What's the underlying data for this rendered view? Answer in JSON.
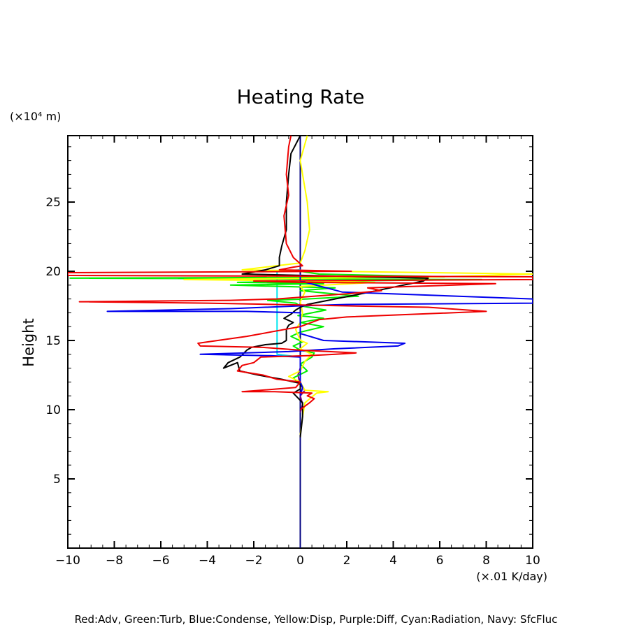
{
  "chart_data": {
    "type": "line",
    "title": "Heating Rate",
    "ylabel": "Height",
    "y_unit": "(×10⁴ m)",
    "x_unit": "(×.01 K/day)",
    "xlim": [
      -10,
      10
    ],
    "ylim": [
      0,
      29.8
    ],
    "x_ticks": [
      -10,
      -8,
      -6,
      -4,
      -2,
      0,
      2,
      4,
      6,
      8,
      10
    ],
    "x_tick_labels": [
      "−10",
      "−8",
      "−6",
      "−4",
      "−2",
      "0",
      "2",
      "4",
      "6",
      "8",
      "10"
    ],
    "y_ticks": [
      5,
      10,
      15,
      20,
      25
    ],
    "y_tick_labels": [
      "5",
      "10",
      "15",
      "20",
      "25"
    ],
    "legend_text": "Red:Adv, Green:Turb, Blue:Condense, Yellow:Disp, Purple:Diff, Cyan:Radiation, Navy: SfcFluc",
    "grid": false,
    "series": [
      {
        "key": "navy",
        "color": "#000080",
        "width": 2,
        "points": [
          [
            0,
            0
          ],
          [
            0,
            29.8
          ]
        ]
      },
      {
        "key": "cyan",
        "color": "#00e5ee",
        "width": 2,
        "points": [
          [
            0,
            13.8
          ],
          [
            -1.0,
            14.0
          ],
          [
            -1.0,
            20.0
          ],
          [
            0,
            20.1
          ]
        ]
      },
      {
        "key": "purple",
        "color": "#800080",
        "width": 2,
        "points": [
          [
            0,
            9.8
          ],
          [
            0.1,
            10.4
          ],
          [
            0,
            11.0
          ],
          [
            0.2,
            11.4
          ],
          [
            0,
            11.8
          ],
          [
            -0.1,
            12.5
          ],
          [
            0,
            13.0
          ]
        ]
      },
      {
        "key": "green",
        "color": "#00ee00",
        "width": 2,
        "points": [
          [
            0,
            11.8
          ],
          [
            -0.3,
            12.3
          ],
          [
            0.3,
            12.8
          ],
          [
            0,
            13.3
          ],
          [
            0.5,
            13.8
          ],
          [
            0.6,
            14.1
          ],
          [
            0,
            14.3
          ],
          [
            -0.3,
            14.6
          ],
          [
            0.1,
            14.9
          ],
          [
            -0.4,
            15.3
          ],
          [
            0,
            15.6
          ],
          [
            1.0,
            16.0
          ],
          [
            0,
            16.3
          ],
          [
            1.0,
            16.6
          ],
          [
            -0.1,
            16.8
          ],
          [
            1.1,
            17.2
          ],
          [
            0,
            17.5
          ],
          [
            -0.2,
            17.7
          ],
          [
            -1.4,
            17.9
          ],
          [
            0.3,
            18.0
          ],
          [
            2.5,
            18.2
          ],
          [
            0,
            18.6
          ],
          [
            1.5,
            18.8
          ],
          [
            -3.0,
            19.0
          ],
          [
            1.0,
            19.1
          ],
          [
            -2.7,
            19.2
          ],
          [
            1.4,
            19.3
          ],
          [
            7.8,
            19.4
          ],
          [
            -9.9,
            19.5
          ],
          [
            6.2,
            19.6
          ],
          [
            0.8,
            19.8
          ],
          [
            0,
            20.0
          ]
        ]
      },
      {
        "key": "yellow",
        "color": "#ffff00",
        "width": 2,
        "points": [
          [
            0,
            8.2
          ],
          [
            0.1,
            9.5
          ],
          [
            0.2,
            10.5
          ],
          [
            0.7,
            11.2
          ],
          [
            1.2,
            11.3
          ],
          [
            0.2,
            11.4
          ],
          [
            0,
            12.0
          ],
          [
            -0.5,
            12.4
          ],
          [
            0,
            12.8
          ],
          [
            0.2,
            13.5
          ],
          [
            0.5,
            14.0
          ],
          [
            0,
            14.4
          ],
          [
            0.3,
            14.8
          ],
          [
            0,
            15.0
          ],
          [
            -0.2,
            15.8
          ],
          [
            0,
            16.3
          ],
          [
            0.1,
            17.0
          ],
          [
            0,
            17.8
          ],
          [
            0.2,
            18.5
          ],
          [
            0,
            18.9
          ],
          [
            3.2,
            19.2
          ],
          [
            0.5,
            19.3
          ],
          [
            -5.0,
            19.4
          ],
          [
            6.0,
            19.6
          ],
          [
            10,
            19.8
          ],
          [
            1.4,
            20.0
          ],
          [
            -2.5,
            20.1
          ],
          [
            0,
            20.6
          ],
          [
            0.2,
            21.5
          ],
          [
            0.4,
            23.0
          ],
          [
            0.3,
            25.0
          ],
          [
            0.1,
            27.0
          ],
          [
            0,
            28.0
          ],
          [
            0.3,
            29.8
          ]
        ]
      },
      {
        "key": "black",
        "color": "#000000",
        "width": 2,
        "points": [
          [
            0,
            8.0
          ],
          [
            0.1,
            9.5
          ],
          [
            0.1,
            10.5
          ],
          [
            -0.3,
            11.2
          ],
          [
            0,
            11.5
          ],
          [
            0,
            11.9
          ],
          [
            -0.8,
            12.2
          ],
          [
            -1.8,
            12.5
          ],
          [
            -2.6,
            12.8
          ],
          [
            -2.7,
            13.4
          ],
          [
            -3.3,
            13.0
          ],
          [
            -3.1,
            13.4
          ],
          [
            -2.6,
            13.8
          ],
          [
            -2.3,
            14.3
          ],
          [
            -2.1,
            14.5
          ],
          [
            -1.5,
            14.7
          ],
          [
            -0.8,
            14.8
          ],
          [
            -0.6,
            15.0
          ],
          [
            -0.6,
            15.8
          ],
          [
            -0.5,
            16.1
          ],
          [
            -0.3,
            16.3
          ],
          [
            -0.7,
            16.6
          ],
          [
            -0.4,
            16.9
          ],
          [
            -0.2,
            17.2
          ],
          [
            0,
            17.4
          ],
          [
            0.3,
            17.6
          ],
          [
            3.0,
            18.5
          ],
          [
            5.3,
            19.3
          ],
          [
            5.5,
            19.5
          ],
          [
            -2.5,
            19.8
          ],
          [
            -1.5,
            20.1
          ],
          [
            -0.9,
            20.4
          ],
          [
            -0.9,
            21.0
          ],
          [
            -0.8,
            21.8
          ],
          [
            -0.6,
            23.0
          ],
          [
            -0.6,
            25.0
          ],
          [
            -0.5,
            27.0
          ],
          [
            -0.4,
            28.5
          ],
          [
            0,
            29.8
          ]
        ]
      },
      {
        "key": "blue",
        "color": "#0000ee",
        "width": 2,
        "points": [
          [
            0,
            11.0
          ],
          [
            0.1,
            11.6
          ],
          [
            0,
            12.0
          ],
          [
            0,
            13.8
          ],
          [
            -1.3,
            13.9
          ],
          [
            -4.3,
            14.0
          ],
          [
            -0.5,
            14.2
          ],
          [
            0.5,
            14.3
          ],
          [
            1.5,
            14.4
          ],
          [
            4.2,
            14.6
          ],
          [
            4.5,
            14.8
          ],
          [
            1.0,
            15.0
          ],
          [
            0,
            15.5
          ],
          [
            0,
            17.0
          ],
          [
            -2.3,
            17.1
          ],
          [
            -8.3,
            17.1
          ],
          [
            -3.0,
            17.3
          ],
          [
            0,
            17.5
          ],
          [
            2.0,
            17.6
          ],
          [
            10,
            17.7
          ],
          [
            10,
            18.0
          ],
          [
            1.8,
            18.5
          ],
          [
            0,
            19.3
          ],
          [
            0,
            19.8
          ]
        ]
      },
      {
        "key": "red",
        "color": "#ee0000",
        "width": 2,
        "points": [
          [
            0,
            10.0
          ],
          [
            0.4,
            10.5
          ],
          [
            0.6,
            10.8
          ],
          [
            0.3,
            11.0
          ],
          [
            0.5,
            11.2
          ],
          [
            -1.1,
            11.3
          ],
          [
            -2.5,
            11.3
          ],
          [
            -0.2,
            11.6
          ],
          [
            0,
            12.0
          ],
          [
            -1.0,
            12.2
          ],
          [
            -1.6,
            12.5
          ],
          [
            -2.7,
            12.8
          ],
          [
            -2.5,
            13.2
          ],
          [
            -2.0,
            13.4
          ],
          [
            -1.7,
            13.8
          ],
          [
            0.3,
            13.9
          ],
          [
            1.5,
            14.0
          ],
          [
            2.4,
            14.1
          ],
          [
            0,
            14.3
          ],
          [
            -1.6,
            14.5
          ],
          [
            -4.3,
            14.6
          ],
          [
            -4.4,
            14.8
          ],
          [
            -2.3,
            15.3
          ],
          [
            0,
            16.0
          ],
          [
            0.8,
            16.5
          ],
          [
            2.0,
            16.7
          ],
          [
            8.0,
            17.1
          ],
          [
            5.5,
            17.4
          ],
          [
            2.0,
            17.5
          ],
          [
            -4.0,
            17.7
          ],
          [
            -9.5,
            17.8
          ],
          [
            -3.0,
            17.9
          ],
          [
            -1.0,
            18.0
          ],
          [
            2.2,
            18.4
          ],
          [
            3.5,
            18.6
          ],
          [
            2.9,
            18.8
          ],
          [
            8.4,
            19.1
          ],
          [
            0,
            19.2
          ],
          [
            -2.0,
            19.3
          ],
          [
            10,
            19.4
          ],
          [
            10,
            19.6
          ],
          [
            -10,
            19.7
          ],
          [
            -10,
            19.9
          ],
          [
            2.2,
            20.0
          ],
          [
            -0.9,
            20.1
          ],
          [
            -0.3,
            20.3
          ],
          [
            0.1,
            20.4
          ],
          [
            -0.3,
            21.0
          ],
          [
            -0.6,
            22.0
          ],
          [
            -0.7,
            24.0
          ],
          [
            -0.5,
            25.5
          ],
          [
            -0.6,
            27.0
          ],
          [
            -0.5,
            29.0
          ],
          [
            -0.4,
            29.8
          ]
        ]
      }
    ]
  }
}
